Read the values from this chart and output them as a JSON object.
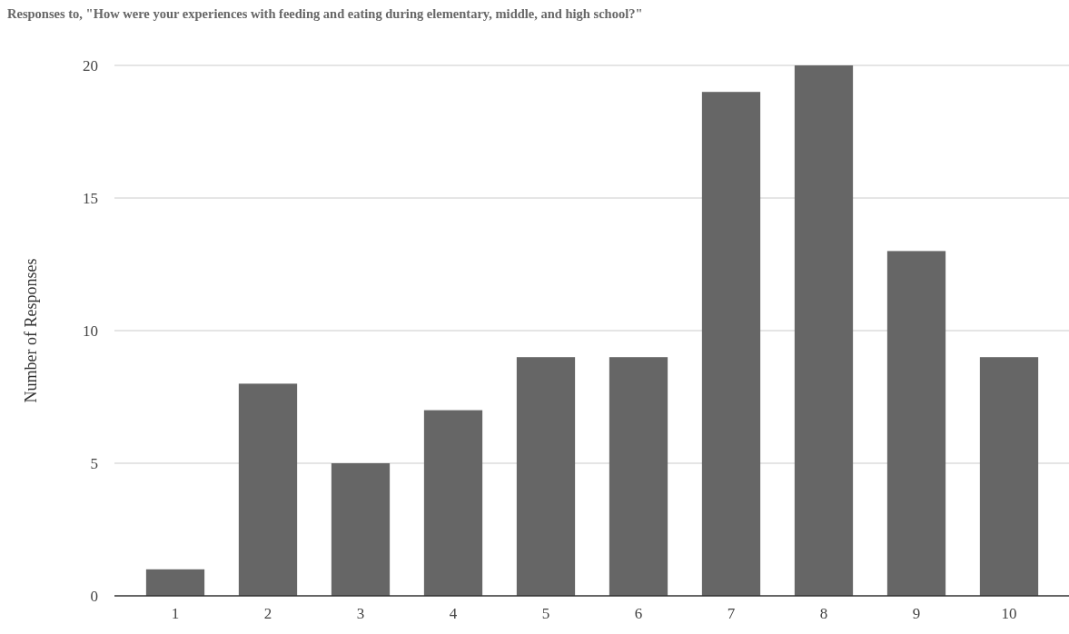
{
  "chart_data": {
    "type": "bar",
    "title": "Responses to, \"How were your experiences with feeding and eating during elementary, middle, and high school?\"",
    "ylabel": "Number of Responses",
    "categories": [
      "1",
      "2",
      "3",
      "4",
      "5",
      "6",
      "7",
      "8",
      "9",
      "10"
    ],
    "values": [
      1,
      8,
      5,
      7,
      9,
      9,
      19,
      20,
      13,
      9
    ],
    "color": "#666666",
    "ylim": [
      0,
      20
    ],
    "yticks": [
      0,
      5,
      10,
      15,
      20
    ],
    "grid": "y"
  }
}
